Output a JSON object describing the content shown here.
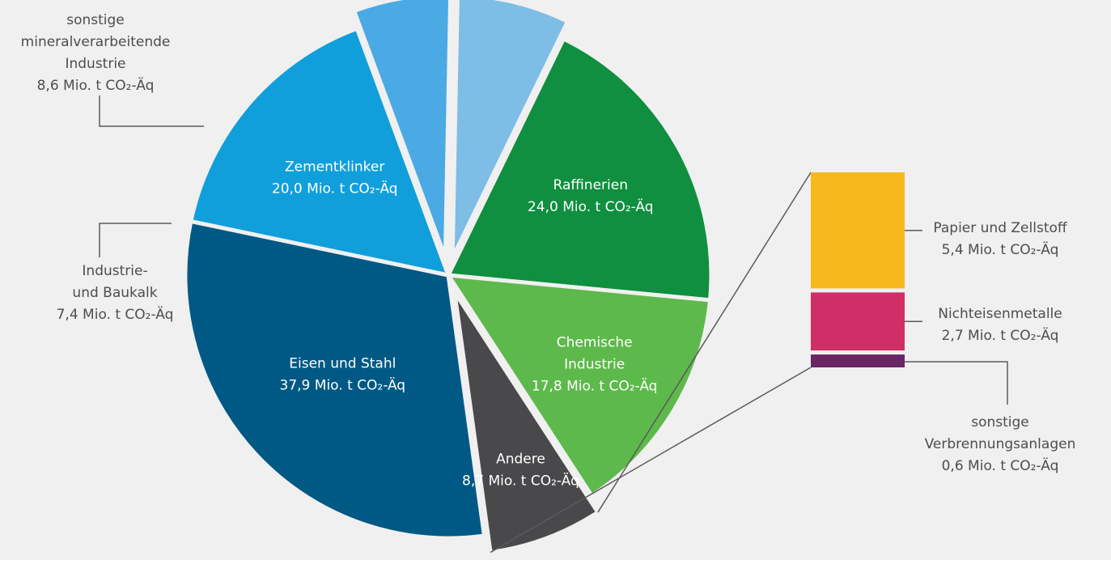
{
  "colors": {
    "background": "#f0f0f0",
    "leader_line": "#5a5a5a",
    "inside_label": "#ffffff",
    "outside_label": "#4d4d4d"
  },
  "chart_data": {
    "type": "pie",
    "unit": "Mio. t CO₂-Äq",
    "slices": [
      {
        "name": "Raffinerien",
        "value": 24.0,
        "label": [
          "Raffinerien",
          "24,0 Mio. t CO₂-Äq"
        ],
        "color": "#0f8f3f",
        "label_inside": true
      },
      {
        "name": "Chemische Industrie",
        "value": 17.8,
        "label": [
          "Chemische",
          "Industrie",
          "17,8 Mio. t CO₂-Äq"
        ],
        "color": "#5db94b",
        "label_inside": true
      },
      {
        "name": "Andere",
        "value": 8.7,
        "label": [
          "Andere",
          "8,7 Mio. t CO₂-Äq"
        ],
        "color": "#49484b",
        "label_inside": true,
        "exploded": true
      },
      {
        "name": "Eisen und Stahl",
        "value": 37.9,
        "label": [
          "Eisen und Stahl",
          "37,9 Mio. t CO₂-Äq"
        ],
        "color": "#005985",
        "label_inside": true
      },
      {
        "name": "Zementklinker",
        "value": 20.0,
        "label": [
          "Zementklinker",
          "20,0 Mio. t CO₂-Äq"
        ],
        "color": "#109fdb",
        "label_inside": true
      },
      {
        "name": "Industrie- und Baukalk",
        "value": 7.4,
        "label": [
          "Industrie-",
          "und Baukalk",
          "7,4 Mio. t CO₂-Äq"
        ],
        "color": "#4ba9e3",
        "label_inside": false,
        "exploded": true
      },
      {
        "name": "sonstige mineralverarbeitende Industrie",
        "value": 8.6,
        "label": [
          "sonstige",
          "mineralverarbeitende",
          "Industrie",
          "8,6 Mio. t CO₂-Äq"
        ],
        "color": "#7dbde6",
        "label_inside": false,
        "exploded": true
      }
    ],
    "breakdown": {
      "of": "Andere",
      "items": [
        {
          "name": "Papier und Zellstoff",
          "value": 5.4,
          "label": [
            "Papier und Zellstoff",
            "5,4 Mio. t CO₂-Äq"
          ],
          "color": "#f6b81c"
        },
        {
          "name": "Nichteisenmetalle",
          "value": 2.7,
          "label": [
            "Nichteisenmetalle",
            "2,7 Mio. t CO₂-Äq"
          ],
          "color": "#cf2f66"
        },
        {
          "name": "sonstige Verbrennungsanlagen",
          "value": 0.6,
          "label": [
            "sonstige",
            "Verbrennungsanlagen",
            "0,6 Mio. t CO₂-Äq"
          ],
          "color": "#6a2564"
        }
      ]
    }
  }
}
